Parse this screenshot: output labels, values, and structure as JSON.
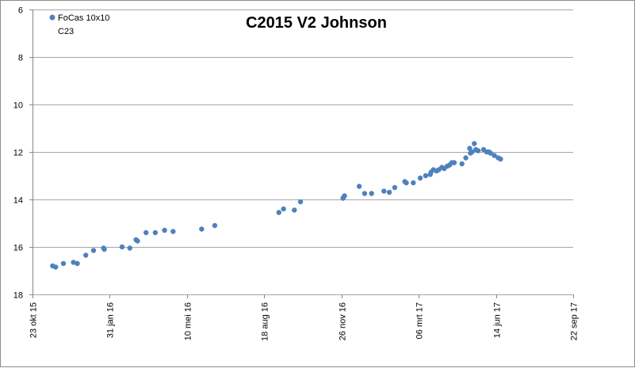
{
  "chart_data": {
    "type": "scatter",
    "title": "C2015 V2 Johnson",
    "xlabel": "",
    "ylabel": "",
    "legend": {
      "entries": [
        "FoCas 10x10",
        "C23"
      ],
      "placement": "top-left"
    },
    "grid": {
      "horizontal": true,
      "vertical": false
    },
    "colors": {
      "series": "#4f81bd",
      "grid": "#a6a6a6",
      "axis": "#868686"
    },
    "y_axis": {
      "reversed": true,
      "ylim": [
        6,
        18
      ],
      "ticks": [
        "6",
        "8",
        "10",
        "12",
        "14",
        "16",
        "18"
      ]
    },
    "x_axis": {
      "xlim": [
        "2015-10-23",
        "2017-09-22"
      ],
      "ticks": [
        "2015-10-23",
        "2016-01-31",
        "2016-05-10",
        "2016-08-18",
        "2016-11-26",
        "2017-03-06",
        "2017-06-14",
        "2017-09-22"
      ],
      "tick_labels": [
        "23 okt 15",
        "31 jan 16",
        "10 mei 16",
        "18 aug 16",
        "26 nov 16",
        "06 mrt 17",
        "14 jun 17",
        "22 sep 17"
      ]
    },
    "series": [
      {
        "name": "FoCas 10x10",
        "points": [
          [
            "2015-11-18",
            16.8
          ],
          [
            "2015-11-22",
            16.85
          ],
          [
            "2015-12-02",
            16.7
          ],
          [
            "2015-12-15",
            16.65
          ],
          [
            "2015-12-20",
            16.7
          ],
          [
            "2015-12-31",
            16.35
          ],
          [
            "2016-01-10",
            16.15
          ],
          [
            "2016-01-23",
            16.05
          ],
          [
            "2016-01-24",
            16.1
          ],
          [
            "2016-02-16",
            16.0
          ],
          [
            "2016-02-26",
            16.05
          ],
          [
            "2016-03-05",
            15.7
          ],
          [
            "2016-03-07",
            15.75
          ],
          [
            "2016-03-18",
            15.4
          ],
          [
            "2016-03-30",
            15.4
          ],
          [
            "2016-04-11",
            15.3
          ],
          [
            "2016-04-22",
            15.35
          ],
          [
            "2016-05-29",
            15.25
          ],
          [
            "2016-06-15",
            15.1
          ],
          [
            "2016-09-06",
            14.55
          ],
          [
            "2016-09-12",
            14.4
          ],
          [
            "2016-09-26",
            14.45
          ],
          [
            "2016-10-04",
            14.1
          ],
          [
            "2016-11-28",
            13.95
          ],
          [
            "2016-11-29",
            13.9
          ],
          [
            "2016-11-30",
            13.85
          ],
          [
            "2016-12-19",
            13.45
          ],
          [
            "2016-12-26",
            13.75
          ],
          [
            "2017-01-04",
            13.75
          ],
          [
            "2017-01-20",
            13.65
          ],
          [
            "2017-01-27",
            13.7
          ],
          [
            "2017-02-03",
            13.5
          ],
          [
            "2017-02-16",
            13.25
          ],
          [
            "2017-02-18",
            13.3
          ],
          [
            "2017-02-27",
            13.3
          ],
          [
            "2017-03-08",
            13.1
          ],
          [
            "2017-03-15",
            13.0
          ],
          [
            "2017-03-21",
            12.95
          ],
          [
            "2017-03-22",
            12.85
          ],
          [
            "2017-03-25",
            12.75
          ],
          [
            "2017-03-29",
            12.8
          ],
          [
            "2017-04-01",
            12.75
          ],
          [
            "2017-04-05",
            12.65
          ],
          [
            "2017-04-08",
            12.7
          ],
          [
            "2017-04-12",
            12.6
          ],
          [
            "2017-04-15",
            12.55
          ],
          [
            "2017-04-18",
            12.45
          ],
          [
            "2017-04-21",
            12.45
          ],
          [
            "2017-05-01",
            12.5
          ],
          [
            "2017-05-06",
            12.25
          ],
          [
            "2017-05-11",
            11.85
          ],
          [
            "2017-05-12",
            12.05
          ],
          [
            "2017-05-14",
            12.0
          ],
          [
            "2017-05-17",
            11.65
          ],
          [
            "2017-05-19",
            11.9
          ],
          [
            "2017-05-22",
            11.95
          ],
          [
            "2017-05-29",
            11.9
          ],
          [
            "2017-06-02",
            12.0
          ],
          [
            "2017-06-05",
            12.0
          ],
          [
            "2017-06-07",
            12.05
          ],
          [
            "2017-06-12",
            12.15
          ],
          [
            "2017-06-17",
            12.25
          ],
          [
            "2017-06-20",
            12.3
          ]
        ]
      }
    ]
  }
}
